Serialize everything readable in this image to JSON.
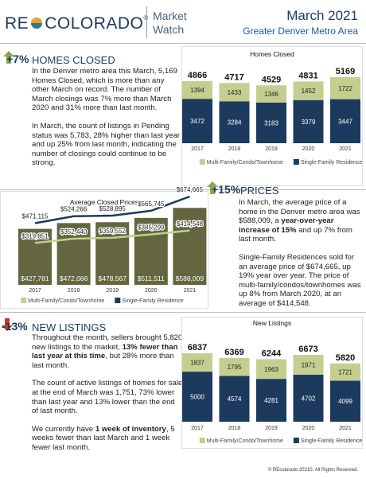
{
  "header": {
    "brand_left": "RE",
    "brand_right": "COLORADO",
    "brand_mark": "®",
    "product": [
      "Market",
      "Watch"
    ],
    "date": "March 2021",
    "region": "Greater Denver Metro Area"
  },
  "sections": [
    {
      "badge": "+7%",
      "title": "HOMES CLOSED",
      "paragraphs": [
        [
          "In the Denver metro area this March, 5,169 Homes Closed, which is more than any other March on record. The number of March closings was 7% more than March 2020 and 31% more than last month."
        ],
        [
          "In March, the count of listings in Pending status was 5,783, 28% higher than last year and up 25% from last month, indicating the number of closings could continue to be strong."
        ]
      ]
    },
    {
      "badge": "+15%",
      "title": "PRICES",
      "paragraphs": [
        [
          "In March, the average price of a home in the Denver metro area was $588,009, a ",
          {
            "bold": "year-over-year increase of 15%"
          },
          " and up 7% from last month."
        ],
        [
          "Single-Family Residences sold for an average price of $674,665, up 19% year over year. The price of multi-family/condos/townhomes was up 8% from March 2020, at an average of $414,548."
        ]
      ]
    },
    {
      "badge": "-13%",
      "title": "NEW LISTINGS",
      "paragraphs": [
        [
          "Throughout the month, sellers brought 5,820 new listings to the market, ",
          {
            "bold": "13% fewer than last year at this time"
          },
          ", but 28% more than last month."
        ],
        [
          "The count of active listings of homes for sale at the end of March was 1,751, 73% lower than last year and 13% lower than the end of last month."
        ],
        [
          "We currently have ",
          {
            "bold": "1 week of inventory"
          },
          ", 5 weeks fewer than last March and 1 week fewer last month."
        ]
      ]
    }
  ],
  "chart_data": [
    {
      "type": "stacked_bar",
      "title": "Homes Closed",
      "categories": [
        "2017",
        "2018",
        "2019",
        "2020",
        "2021"
      ],
      "series": [
        {
          "name": "Single-Family Residence",
          "color": "#1c3a5e",
          "values": [
            3472,
            3284,
            3183,
            3379,
            3447
          ]
        },
        {
          "name": "Multi-Family/Condo/Townhome",
          "color": "#c3cf8e",
          "values": [
            1394,
            1433,
            1346,
            1452,
            1722
          ]
        }
      ],
      "totals": [
        4866,
        4717,
        4529,
        4831,
        5169
      ]
    },
    {
      "type": "bar_line",
      "title": "Average Closed Prices",
      "categories": [
        "2017",
        "2018",
        "2019",
        "2020",
        "2021"
      ],
      "series": [
        {
          "kind": "bar",
          "color": "#63663f",
          "values": [
            427781,
            472066,
            478567,
            511511,
            588009
          ],
          "value_labels": [
            "$427,781",
            "$472,066",
            "$478,567",
            "$511,511",
            "$588,009"
          ]
        },
        {
          "kind": "line",
          "name": "Single-Family Residence",
          "color": "#1c3a5e",
          "values": [
            471115,
            524266,
            528895,
            565745,
            674665
          ],
          "value_labels": [
            "$471,115",
            "$524,266",
            "$528,895",
            "$565,745",
            "$674,665"
          ]
        },
        {
          "kind": "line",
          "name": "Multi-Family/Condo/Townhome",
          "color": "#c3cf8e",
          "values": [
            319851,
            352440,
            359552,
            385299,
            414548
          ],
          "value_labels": [
            "$319,851",
            "$352,440",
            "$359,552",
            "$385,299",
            "$414,548"
          ]
        }
      ]
    },
    {
      "type": "stacked_bar",
      "title": "New Listings",
      "categories": [
        "2017",
        "2018",
        "2019",
        "2020",
        "2021"
      ],
      "series": [
        {
          "name": "Single-Family Residence",
          "color": "#1c3a5e",
          "values": [
            5000,
            4574,
            4281,
            4702,
            4099
          ]
        },
        {
          "name": "Multi-Family/Condo/Townhome",
          "color": "#c3cf8e",
          "values": [
            1837,
            1795,
            1963,
            1971,
            1721
          ]
        }
      ],
      "totals": [
        6837,
        6369,
        6244,
        6673,
        5820
      ]
    }
  ],
  "footer": "© REcolorado 20210. All Rights Reserved."
}
